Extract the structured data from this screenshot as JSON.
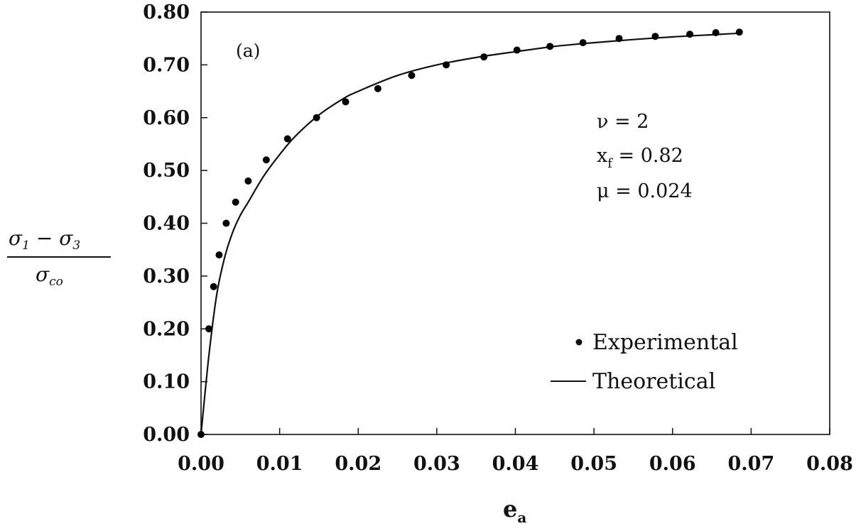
{
  "chart_data": {
    "type": "scatter",
    "panel_label": "(a)",
    "xlabel": "e",
    "xlabel_sub": "a",
    "ylabel_top": "σ",
    "ylabel_top_sub1": "1",
    "ylabel_top_minus": " − σ",
    "ylabel_top_sub2": "3",
    "ylabel_bottom": "σ",
    "ylabel_bottom_sub": "co",
    "xlim": [
      0.0,
      0.08
    ],
    "ylim": [
      0.0,
      0.8
    ],
    "x_ticks": [
      0.0,
      0.01,
      0.02,
      0.03,
      0.04,
      0.05,
      0.06,
      0.07,
      0.08
    ],
    "x_tick_labels": [
      "0.00",
      "0.01",
      "0.02",
      "0.03",
      "0.04",
      "0.05",
      "0.06",
      "0.07",
      "0.08"
    ],
    "y_ticks": [
      0.0,
      0.1,
      0.2,
      0.3,
      0.4,
      0.5,
      0.6,
      0.7,
      0.8
    ],
    "y_tick_labels": [
      "0.00",
      "0.10",
      "0.20",
      "0.30",
      "0.40",
      "0.50",
      "0.60",
      "0.70",
      "0.80"
    ],
    "grid": false,
    "legend_position": "bottom-right",
    "annotations": [
      "ν = 2",
      "x",
      "f",
      " = 0.82",
      "μ = 0.024"
    ],
    "series": [
      {
        "name": "Experimental",
        "kind": "points",
        "color": "#000000",
        "x": [
          0.0,
          0.001,
          0.0016,
          0.0023,
          0.0032,
          0.0044,
          0.006,
          0.0083,
          0.011,
          0.0147,
          0.0184,
          0.0225,
          0.0268,
          0.0312,
          0.036,
          0.0402,
          0.0444,
          0.0486,
          0.0532,
          0.0578,
          0.0622,
          0.0655,
          0.0685
        ],
        "y": [
          0.0,
          0.2,
          0.28,
          0.34,
          0.4,
          0.44,
          0.48,
          0.52,
          0.56,
          0.6,
          0.63,
          0.655,
          0.68,
          0.7,
          0.715,
          0.728,
          0.735,
          0.742,
          0.75,
          0.754,
          0.758,
          0.761,
          0.762
        ]
      },
      {
        "name": "Theoretical",
        "kind": "line",
        "color": "#000000",
        "x": [
          0.0,
          0.001,
          0.002,
          0.003,
          0.004,
          0.005,
          0.006,
          0.008,
          0.01,
          0.012,
          0.015,
          0.018,
          0.02,
          0.025,
          0.03,
          0.035,
          0.04,
          0.045,
          0.05,
          0.055,
          0.06,
          0.065,
          0.0685
        ],
        "y": [
          0.0,
          0.15,
          0.265,
          0.335,
          0.382,
          0.415,
          0.44,
          0.49,
          0.53,
          0.565,
          0.605,
          0.635,
          0.65,
          0.68,
          0.7,
          0.714,
          0.725,
          0.735,
          0.742,
          0.748,
          0.753,
          0.757,
          0.76
        ]
      }
    ]
  }
}
